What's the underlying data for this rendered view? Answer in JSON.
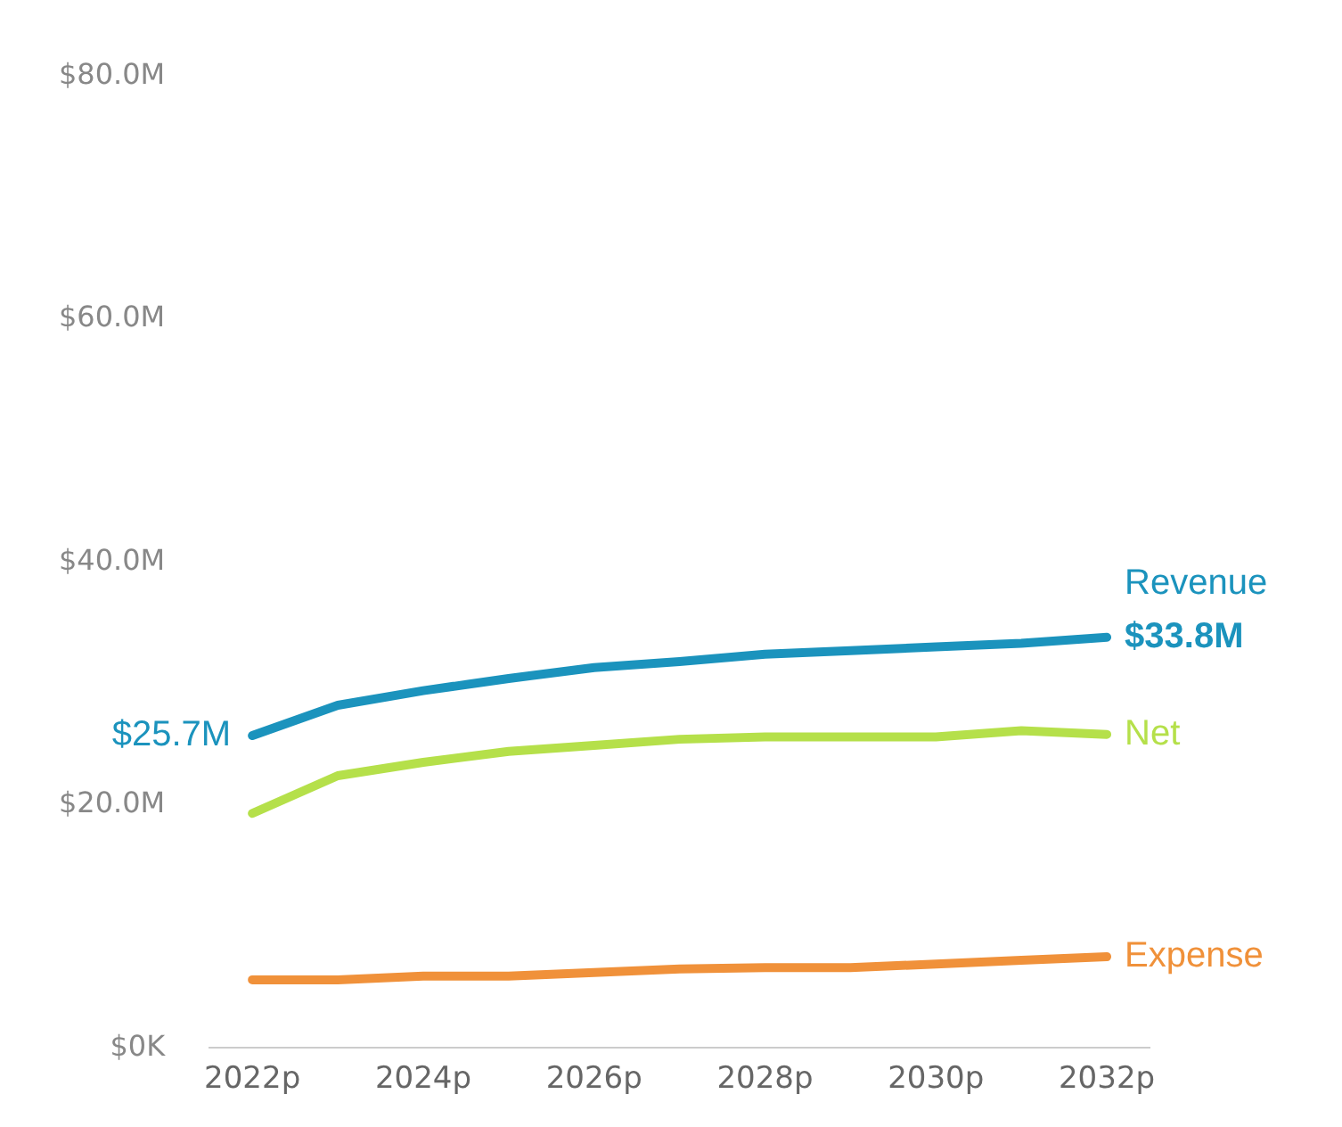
{
  "chart_data": {
    "type": "line",
    "categories": [
      "2022p",
      null,
      "2024p",
      null,
      "2026p",
      null,
      "2028p",
      null,
      "2030p",
      null,
      "2032p"
    ],
    "series": [
      {
        "name": "Revenue",
        "color": "#1b93bd",
        "values": [
          25.7,
          28.2,
          29.4,
          30.4,
          31.3,
          31.8,
          32.4,
          32.7,
          33.0,
          33.3,
          33.8
        ]
      },
      {
        "name": "Net",
        "color": "#b5e04a",
        "values": [
          19.3,
          22.4,
          23.5,
          24.4,
          24.9,
          25.4,
          25.6,
          25.6,
          25.6,
          26.1,
          25.8
        ]
      },
      {
        "name": "Expense",
        "color": "#f0913a",
        "values": [
          5.6,
          5.6,
          5.9,
          5.9,
          6.2,
          6.5,
          6.6,
          6.6,
          6.9,
          7.2,
          7.5
        ]
      }
    ],
    "ylim": [
      0,
      80
    ],
    "yticks": [
      {
        "value": 0,
        "label": "$0K"
      },
      {
        "value": 20,
        "label": "$20.0M"
      },
      {
        "value": 40,
        "label": "$40.0M"
      },
      {
        "value": 60,
        "label": "$60.0M"
      },
      {
        "value": 80,
        "label": "$80.0M"
      }
    ],
    "annotations": [
      {
        "text": "$25.7M",
        "x": "2022p",
        "y": 25.7
      },
      {
        "text": "$33.8M",
        "x": "2032p",
        "y": 33.8
      }
    ],
    "grid": false,
    "legend": false,
    "marker": "none",
    "line_style": "solid"
  }
}
